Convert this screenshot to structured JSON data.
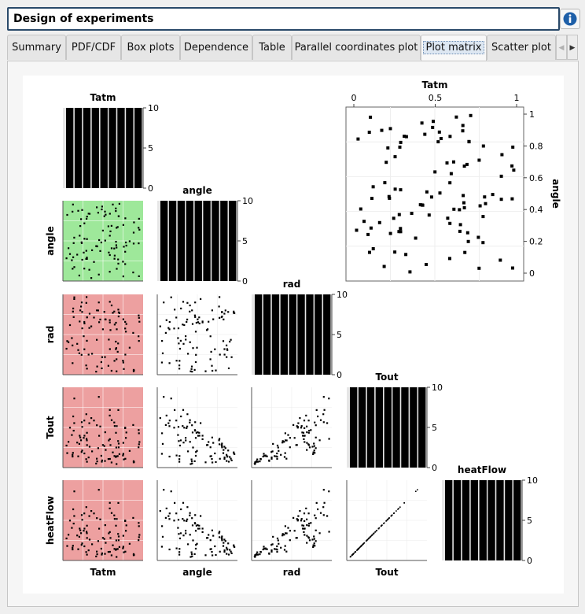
{
  "window": {
    "title": "Design of experiments",
    "info_icon": "info-icon"
  },
  "tabs": [
    {
      "label": "Summary",
      "active": false
    },
    {
      "label": "PDF/CDF",
      "active": false
    },
    {
      "label": "Box plots",
      "active": false
    },
    {
      "label": "Dependence",
      "active": false
    },
    {
      "label": "Table",
      "active": false
    },
    {
      "label": "Parallel coordinates plot",
      "active": false
    },
    {
      "label": "Plot matrix",
      "active": true
    },
    {
      "label": "Scatter plot",
      "active": false
    }
  ],
  "tab_scroll": {
    "left_icon": "chevron-left-icon",
    "right_icon": "chevron-right-icon"
  },
  "chart_data": {
    "type": "scatter-matrix",
    "variables": [
      "Tatm",
      "angle",
      "rad",
      "Tout",
      "heatFlow"
    ],
    "histogram": {
      "bins": 9,
      "counts_per_bin": 10,
      "y_ticks": [
        "0",
        "5",
        "10"
      ],
      "ylim": [
        0,
        10
      ]
    },
    "cell_colors": {
      "Tatm-angle": "#9ee89a",
      "Tatm-rad": "#eda0a0",
      "Tatm-Tout": "#eda0a0",
      "Tatm-heatFlow": "#eda0a0"
    },
    "zoom_scatter": {
      "x_variable": "Tatm",
      "y_variable": "angle",
      "x_ticks": [
        "0",
        "0.5",
        "1"
      ],
      "y_ticks": [
        "0",
        "0.2",
        "0.4",
        "0.6",
        "0.8",
        "1"
      ],
      "xlim": [
        0,
        1
      ],
      "ylim": [
        0,
        1
      ]
    }
  }
}
